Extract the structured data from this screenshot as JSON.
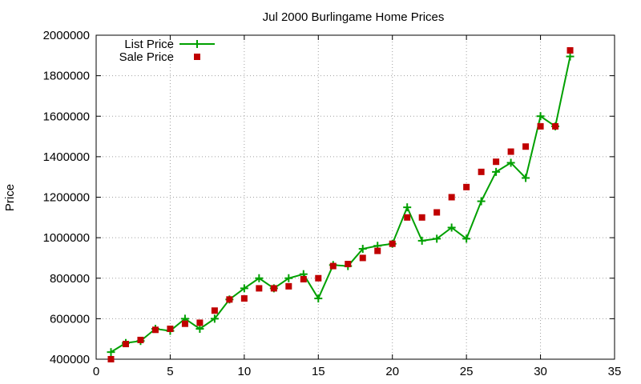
{
  "chart_data": {
    "type": "line",
    "title": "Jul 2000 Burlingame Home Prices",
    "xlabel": "",
    "ylabel": "Price",
    "xlim": [
      0,
      35
    ],
    "ylim": [
      400000,
      2000000
    ],
    "x_ticks": [
      0,
      5,
      10,
      15,
      20,
      25,
      30,
      35
    ],
    "y_ticks": [
      400000,
      600000,
      800000,
      1000000,
      1200000,
      1400000,
      1600000,
      1800000,
      2000000
    ],
    "grid": true,
    "legend_position": "top-left",
    "x": [
      1,
      2,
      3,
      4,
      5,
      6,
      7,
      8,
      9,
      10,
      11,
      12,
      13,
      14,
      15,
      16,
      17,
      18,
      19,
      20,
      21,
      22,
      23,
      24,
      25,
      26,
      27,
      28,
      29,
      30,
      31,
      32
    ],
    "series": [
      {
        "name": "List Price",
        "style": "lines+points",
        "marker": "plus",
        "color": "#00a000",
        "values": [
          435000,
          480000,
          490000,
          550000,
          540000,
          600000,
          550000,
          600000,
          695000,
          750000,
          800000,
          750000,
          800000,
          820000,
          700000,
          865000,
          860000,
          945000,
          960000,
          970000,
          1150000,
          985000,
          995000,
          1050000,
          995000,
          1180000,
          1325000,
          1370000,
          1295000,
          1600000,
          1550000,
          1895000
        ]
      },
      {
        "name": "Sale Price",
        "style": "points",
        "marker": "square",
        "color": "#c00000",
        "values": [
          400000,
          475000,
          495000,
          545000,
          550000,
          575000,
          580000,
          640000,
          695000,
          700000,
          750000,
          750000,
          760000,
          795000,
          800000,
          860000,
          870000,
          900000,
          935000,
          970000,
          1100000,
          1100000,
          1125000,
          1200000,
          1250000,
          1325000,
          1375000,
          1425000,
          1450000,
          1550000,
          1550000,
          1925000
        ]
      }
    ]
  }
}
